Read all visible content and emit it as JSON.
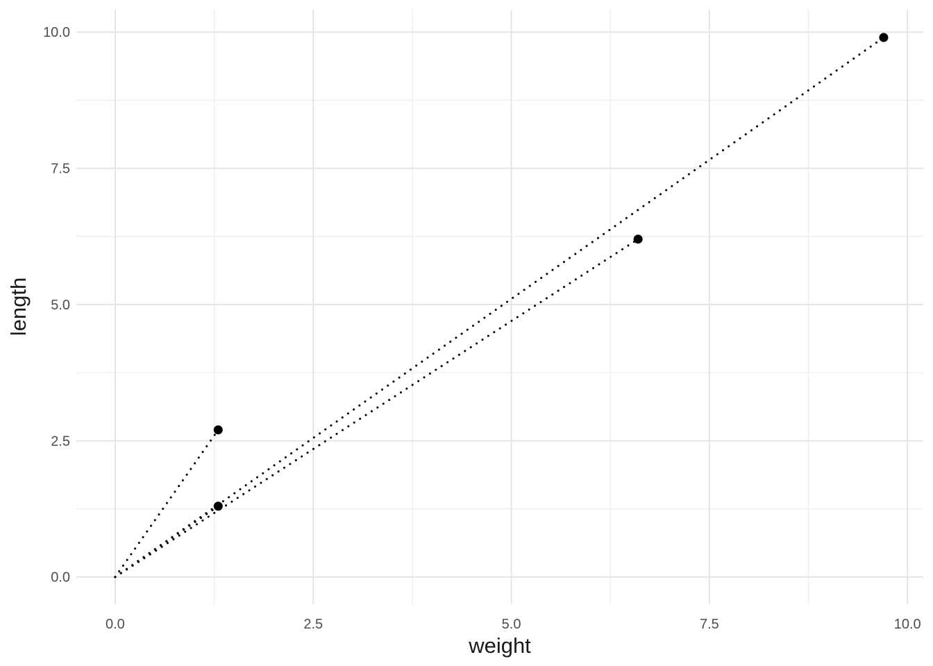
{
  "chart_data": {
    "type": "scatter",
    "title": "",
    "xlabel": "weight",
    "ylabel": "length",
    "points": [
      {
        "x": 1.3,
        "y": 1.3
      },
      {
        "x": 1.3,
        "y": 2.7
      },
      {
        "x": 6.6,
        "y": 6.2
      },
      {
        "x": 9.7,
        "y": 9.9
      }
    ],
    "segments": [
      {
        "x1": 0,
        "y1": 0,
        "x2": 1.3,
        "y2": 1.3
      },
      {
        "x1": 0,
        "y1": 0,
        "x2": 1.3,
        "y2": 2.7
      },
      {
        "x1": 0,
        "y1": 0,
        "x2": 6.6,
        "y2": 6.2
      },
      {
        "x1": 0,
        "y1": 0,
        "x2": 9.7,
        "y2": 9.9
      }
    ],
    "segment_style": "dotted",
    "x_ticks": {
      "values": [
        0,
        2.5,
        5,
        7.5,
        10
      ],
      "labels": [
        "0.0",
        "2.5",
        "5.0",
        "7.5",
        "10.0"
      ]
    },
    "y_ticks": {
      "values": [
        0,
        2.5,
        5,
        7.5,
        10
      ],
      "labels": [
        "0.0",
        "2.5",
        "5.0",
        "7.5",
        "10.0"
      ]
    },
    "x_minor": [
      1.25,
      3.75,
      6.25,
      8.75
    ],
    "y_minor": [
      1.25,
      3.75,
      6.25,
      8.75
    ],
    "xlim": [
      -0.49,
      10.2
    ],
    "ylim": [
      -0.5,
      10.41
    ],
    "grid": "major+minor",
    "legend": "none",
    "colors": {
      "background": "#FFFFFF",
      "point": "#000000",
      "segment": "#000000",
      "grid_major": "#E5E5E5",
      "grid_minor": "#EDEDED",
      "tick_label": "#4D4D4D",
      "axis_title": "#1A1A1A"
    }
  }
}
